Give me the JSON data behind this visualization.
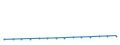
{
  "x": [
    2000,
    2001,
    2002,
    2003,
    2004,
    2005,
    2006,
    2007,
    2008,
    2009,
    2010,
    2011,
    2012,
    2013
  ],
  "y": [
    100,
    105,
    110,
    115,
    118,
    122,
    127,
    132,
    138,
    143,
    149,
    155,
    161,
    168
  ],
  "line_color": "#3a8bbf",
  "line_width": 0.8,
  "background_color": "#ffffff",
  "ylim": [
    0,
    800
  ],
  "xlim": [
    1999.5,
    2013.5
  ]
}
